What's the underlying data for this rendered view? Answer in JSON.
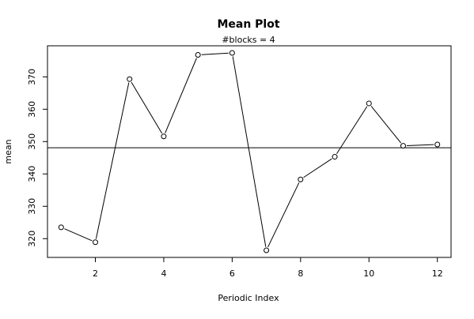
{
  "chart_data": {
    "type": "line",
    "title": "Mean Plot",
    "subtitle": "#blocks =  4",
    "xlabel": "Periodic Index",
    "ylabel": "mean",
    "x": [
      1,
      2,
      3,
      4,
      5,
      6,
      7,
      8,
      9,
      10,
      11,
      12
    ],
    "series": [
      {
        "values": [
          323.5,
          318.9,
          369.3,
          351.6,
          376.8,
          377.4,
          316.4,
          338.3,
          345.3,
          361.8,
          348.7,
          349.1
        ]
      }
    ],
    "reference_line": {
      "y": 348.1
    },
    "xlim": [
      0.6,
      12.4
    ],
    "ylim": [
      314.2,
      379.6
    ],
    "xticks": [
      2,
      4,
      6,
      8,
      10,
      12
    ],
    "yticks": [
      320,
      330,
      340,
      350,
      360,
      370
    ],
    "grid": false,
    "marker": "open-circle"
  }
}
